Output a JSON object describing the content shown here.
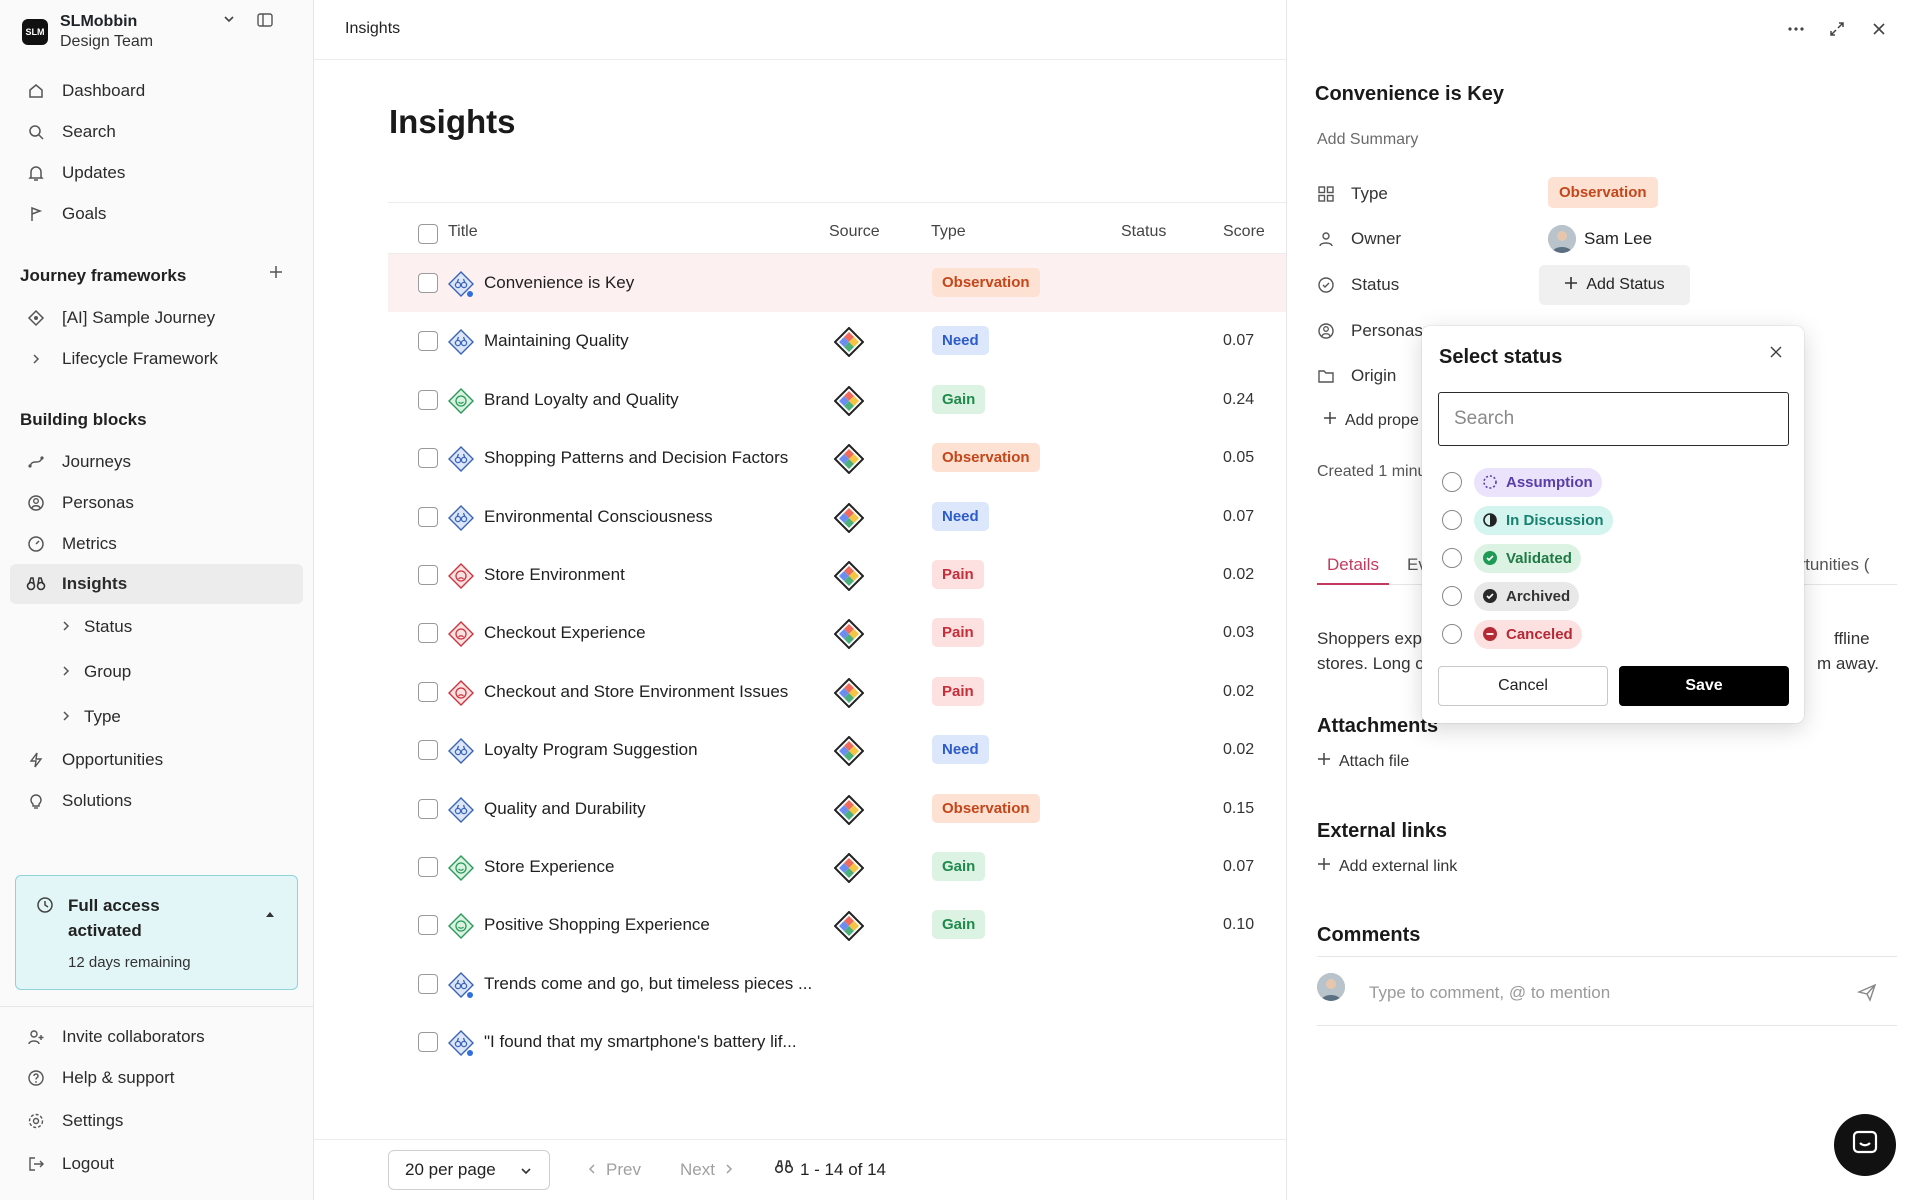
{
  "workspace": {
    "logo": "SLM",
    "name": "SLMobbin",
    "team": "Design Team"
  },
  "nav": {
    "dashboard": "Dashboard",
    "search": "Search",
    "updates": "Updates",
    "goals": "Goals",
    "journey_frameworks": "Journey frameworks",
    "sample_journey": "[AI] Sample Journey",
    "lifecycle": "Lifecycle Framework",
    "building_blocks": "Building blocks",
    "journeys": "Journeys",
    "personas": "Personas",
    "metrics": "Metrics",
    "insights": "Insights",
    "sub_status": "Status",
    "sub_group": "Group",
    "sub_type": "Type",
    "opportunities": "Opportunities",
    "solutions": "Solutions",
    "invite": "Invite collaborators",
    "help": "Help & support",
    "settings": "Settings",
    "logout": "Logout"
  },
  "trial": {
    "title": "Full access activated",
    "remaining": "12 days remaining"
  },
  "breadcrumb": "Insights",
  "page_title": "Insights",
  "table": {
    "columns": {
      "title": "Title",
      "source": "Source",
      "type": "Type",
      "status": "Status",
      "score": "Score"
    },
    "rows": [
      {
        "title": "Convenience is Key",
        "type": "Observation",
        "score": ""
      },
      {
        "title": "Maintaining Quality",
        "type": "Need",
        "score": "0.07"
      },
      {
        "title": "Brand Loyalty and Quality",
        "type": "Gain",
        "score": "0.24"
      },
      {
        "title": "Shopping Patterns and Decision Factors",
        "type": "Observation",
        "score": "0.05"
      },
      {
        "title": "Environmental Consciousness",
        "type": "Need",
        "score": "0.07"
      },
      {
        "title": "Store Environment",
        "type": "Pain",
        "score": "0.02"
      },
      {
        "title": "Checkout Experience",
        "type": "Pain",
        "score": "0.03"
      },
      {
        "title": "Checkout and Store Environment Issues",
        "type": "Pain",
        "score": "0.02"
      },
      {
        "title": "Loyalty Program Suggestion",
        "type": "Need",
        "score": "0.02"
      },
      {
        "title": "Quality and Durability",
        "type": "Observation",
        "score": "0.15"
      },
      {
        "title": "Store Experience",
        "type": "Gain",
        "score": "0.07"
      },
      {
        "title": "Positive Shopping Experience",
        "type": "Gain",
        "score": "0.10"
      },
      {
        "title": "Trends come and go, but timeless pieces ...",
        "type": "",
        "score": ""
      },
      {
        "title": "\"I found that my smartphone's battery lif...",
        "type": "",
        "score": ""
      }
    ]
  },
  "pagination": {
    "per_page": "20 per page",
    "prev": "Prev",
    "next": "Next",
    "count": "1 - 14 of 14"
  },
  "panel": {
    "title": "Convenience is Key",
    "add_summary": "Add Summary",
    "labels": {
      "type": "Type",
      "owner": "Owner",
      "status": "Status",
      "personas": "Personas",
      "origin": "Origin"
    },
    "type_value": "Observation",
    "owner_name": "Sam Lee",
    "add_status": "Add Status",
    "add_property": "Add prope",
    "created": "Created 1 minu",
    "tabs": {
      "details": "Details",
      "evidence": "Ev",
      "opportunities": "ortunities ("
    },
    "desc_line1_left": "Shoppers exp",
    "desc_line1_right": "ffline",
    "desc_line2_left": "stores. Long c",
    "desc_line2_right": "m away.",
    "attachments": "Attachments",
    "attach_file": "Attach file",
    "external_links": "External links",
    "add_external_link": "Add external link",
    "comments": "Comments",
    "comment_placeholder": "Type to comment, @ to mention"
  },
  "popover": {
    "title": "Select status",
    "search_placeholder": "Search",
    "options": [
      "Assumption",
      "In Discussion",
      "Validated",
      "Archived",
      "Canceled"
    ],
    "cancel": "Cancel",
    "save": "Save"
  },
  "colors": {
    "accent": "#c43a5f",
    "observation": "#c4461b",
    "need": "#2d5cc9",
    "gain": "#1f8a4c",
    "pain": "#c42f3a"
  }
}
